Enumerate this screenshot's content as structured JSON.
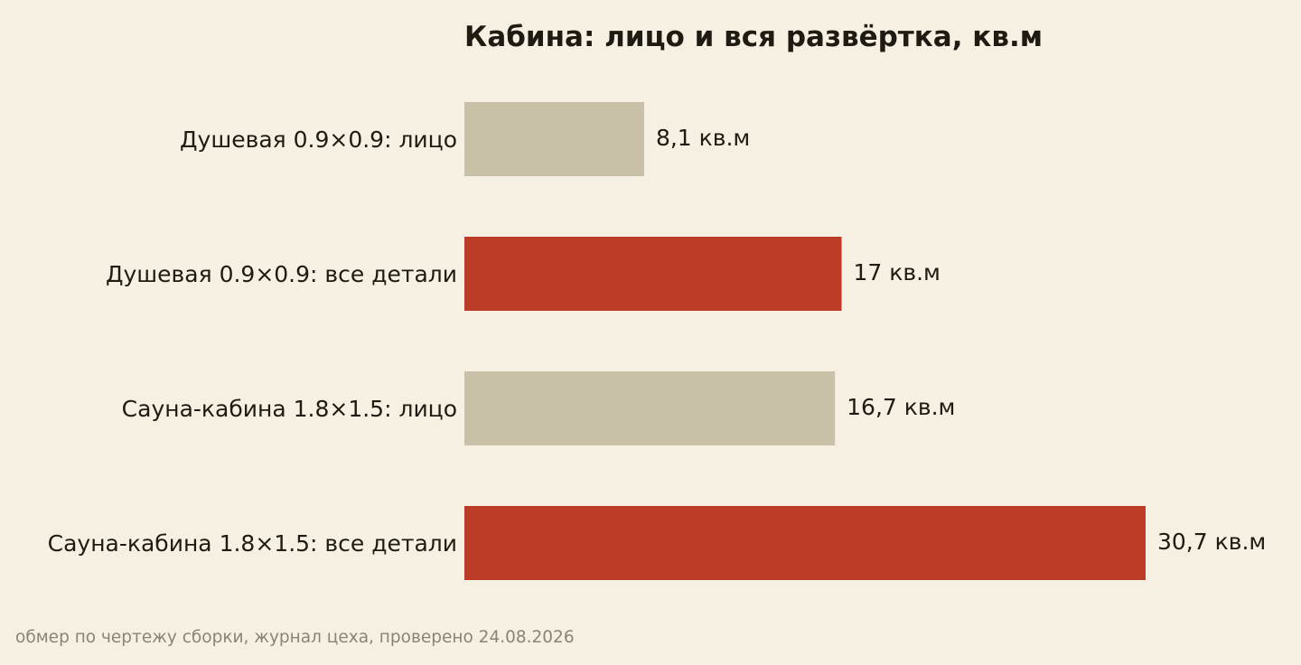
{
  "chart_data": {
    "type": "bar",
    "orientation": "horizontal",
    "title": "Кабина: лицо и вся развёртка, кв.м",
    "xlabel": "",
    "ylabel": "",
    "xlim": [
      0,
      30.7
    ],
    "grid": false,
    "legend": "none",
    "categories": [
      "Душевая 0.9×0.9: лицо",
      "Душевая 0.9×0.9: все детали",
      "Сауна-кабина 1.8×1.5: лицо",
      "Сауна-кабина 1.8×1.5: все детали"
    ],
    "values": [
      8.1,
      17,
      16.7,
      30.7
    ],
    "value_labels": [
      "8,1 кв.м",
      "17 кв.м",
      "16,7 кв.м",
      "30,7 кв.м"
    ],
    "bar_colors": [
      "#c9c0a8",
      "#bc3c27",
      "#c9c0a8",
      "#bc3c27"
    ]
  },
  "footer": {
    "source": "обмер по чертежу сборки, журнал цеха, проверено 24.08.2026"
  },
  "colors": {
    "background": "#f6f0e3",
    "text": "#1f1a12",
    "muted_text": "#8a8478"
  }
}
